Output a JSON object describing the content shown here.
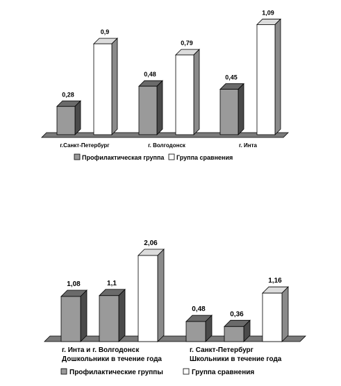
{
  "colors": {
    "gray_front": "#9a9a9a",
    "gray_side": "#4a4a4a",
    "gray_top": "#6a6a6a",
    "white_front": "#ffffff",
    "white_side": "#8a8a8a",
    "white_top": "#dcdcdc",
    "floor": "#7a7a7a"
  },
  "chart_data": [
    {
      "type": "bar",
      "categories": [
        "г.Санкт-Петербург",
        "г. Волгодонск",
        "г. Инта"
      ],
      "series": [
        {
          "name": "Профилактическая группа",
          "values": [
            0.28,
            0.48,
            0.45
          ],
          "value_labels": [
            "0,28",
            "0,48",
            "0,45"
          ]
        },
        {
          "name": "Группа сравнения",
          "values": [
            0.9,
            0.79,
            1.09
          ],
          "value_labels": [
            "0,9",
            "0,79",
            "1,09"
          ]
        }
      ],
      "ylim": [
        0,
        1.1
      ],
      "grid": false,
      "legend_position": "bottom"
    },
    {
      "type": "bar",
      "groups": [
        {
          "line1": "г. Инта и г. Волгодонск",
          "line2": "Дошкольники в течение года"
        },
        {
          "line1": "г. Санкт-Петербург",
          "line2": "Школьники в течение года"
        }
      ],
      "bars": [
        {
          "group": 0,
          "series": 0,
          "value": 1.08,
          "label": "1,08"
        },
        {
          "group": 0,
          "series": 0,
          "value": 1.1,
          "label": "1,1"
        },
        {
          "group": 0,
          "series": 1,
          "value": 2.06,
          "label": "2,06"
        },
        {
          "group": 1,
          "series": 0,
          "value": 0.48,
          "label": "0,48"
        },
        {
          "group": 1,
          "series": 0,
          "value": 0.36,
          "label": "0,36"
        },
        {
          "group": 1,
          "series": 1,
          "value": 1.16,
          "label": "1,16"
        }
      ],
      "series": [
        {
          "name": "Профилактические группы"
        },
        {
          "name": "Группа сравнения"
        }
      ],
      "ylim": [
        0,
        2.2
      ],
      "grid": false,
      "legend_position": "bottom"
    }
  ]
}
